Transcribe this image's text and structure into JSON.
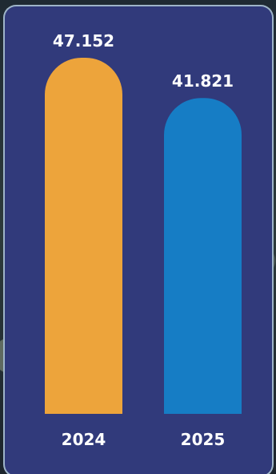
{
  "chart_data": {
    "type": "bar",
    "categories": [
      "2024",
      "2025"
    ],
    "values": [
      47.152,
      41.821
    ],
    "value_labels": [
      "47.152",
      "41.821"
    ],
    "colors": [
      "#eda43b",
      "#167dc5"
    ],
    "title": "",
    "xlabel": "",
    "ylabel": "",
    "grid": false
  },
  "colors": {
    "card_background": "#313a7b",
    "card_border": "#9eb4c8",
    "text": "#ffffff"
  }
}
